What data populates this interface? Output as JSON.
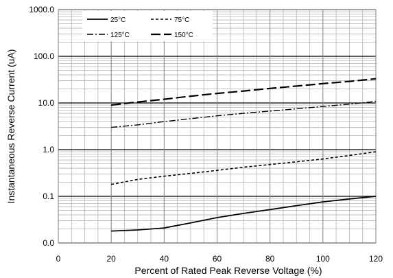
{
  "chart_data": {
    "type": "line",
    "title": "",
    "xlabel": "Percent of  Rated Peak Reverse Voltage (%)",
    "ylabel": "Instantaneous Reverse Current (uA)",
    "x_scale": "linear",
    "y_scale": "log",
    "xlim": [
      0,
      120
    ],
    "ylim": [
      0.01,
      1000
    ],
    "x_ticks": [
      0,
      20,
      40,
      60,
      80,
      100,
      120
    ],
    "x_tick_labels": [
      "0",
      "20",
      "40",
      "60",
      "80",
      "100",
      "120"
    ],
    "y_ticks": [
      0.01,
      0.1,
      1,
      10,
      100,
      1000
    ],
    "y_tick_labels": [
      "0.0",
      "0.1",
      "1.0",
      "10.0",
      "100.0",
      "1000.0"
    ],
    "grid": true,
    "legend_position": "top-left",
    "series": [
      {
        "name": "25°C",
        "style": "solid",
        "x": [
          20,
          30,
          40,
          50,
          60,
          70,
          80,
          90,
          100,
          110,
          120
        ],
        "y": [
          0.018,
          0.019,
          0.021,
          0.027,
          0.035,
          0.043,
          0.052,
          0.063,
          0.076,
          0.088,
          0.1
        ]
      },
      {
        "name": "75°C",
        "style": "short-dash",
        "x": [
          20,
          30,
          40,
          50,
          60,
          70,
          80,
          90,
          100,
          110,
          120
        ],
        "y": [
          0.18,
          0.23,
          0.27,
          0.31,
          0.36,
          0.42,
          0.48,
          0.55,
          0.63,
          0.75,
          0.9
        ]
      },
      {
        "name": "125°C",
        "style": "dash-dot",
        "x": [
          20,
          30,
          40,
          50,
          60,
          70,
          80,
          90,
          100,
          110,
          120
        ],
        "y": [
          3.0,
          3.4,
          4.0,
          4.6,
          5.3,
          6.0,
          6.7,
          7.5,
          8.4,
          9.4,
          10.8
        ]
      },
      {
        "name": "150°C",
        "style": "long-dash",
        "x": [
          20,
          30,
          40,
          50,
          60,
          70,
          80,
          90,
          100,
          110,
          120
        ],
        "y": [
          9.0,
          10.5,
          12.0,
          14.0,
          16.0,
          18.0,
          20.5,
          23.0,
          26.0,
          29.0,
          33.0
        ]
      }
    ]
  }
}
